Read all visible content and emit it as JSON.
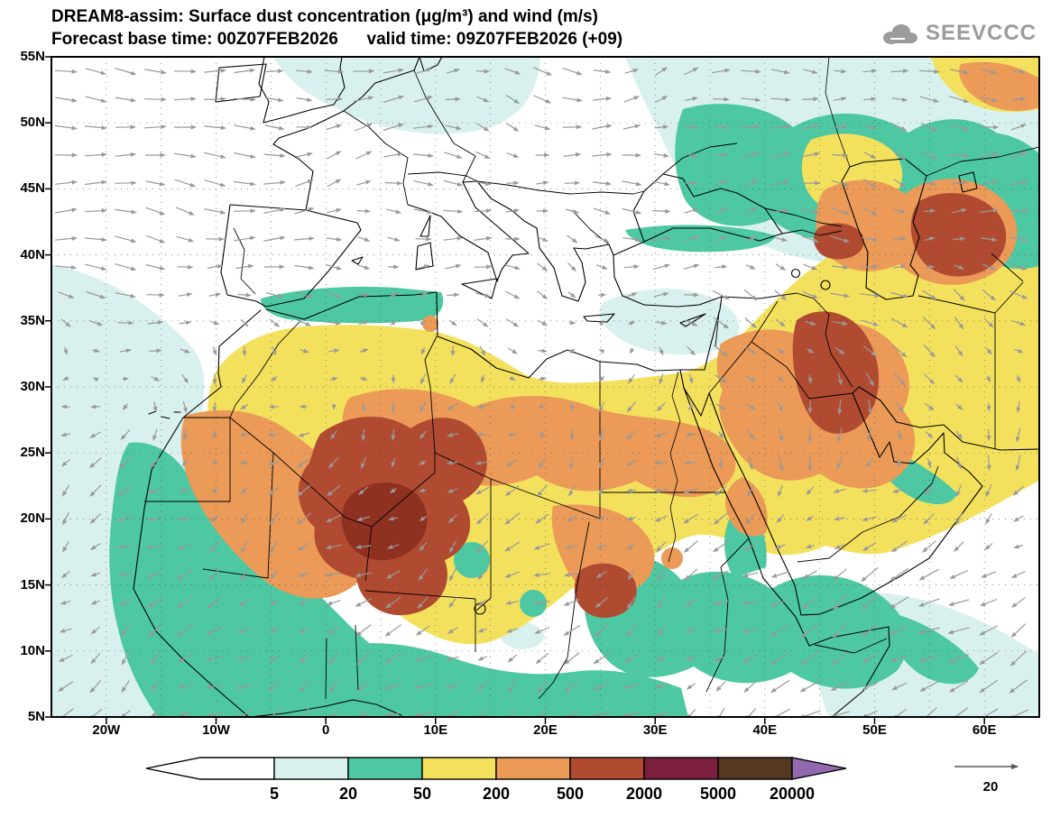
{
  "header": {
    "title_line1": "DREAM8-assim: Surface dust concentration (μg/m³) and wind (m/s)",
    "title_line2": "Forecast base time: 00Z07FEB2026      valid time: 09Z07FEB2026 (+09)",
    "logo_text": "SEEVCCC"
  },
  "axes": {
    "lat_labels": [
      "55N",
      "50N",
      "45N",
      "40N",
      "35N",
      "30N",
      "25N",
      "20N",
      "15N",
      "10N",
      "5N"
    ],
    "lon_labels": [
      "20W",
      "10W",
      "0",
      "10E",
      "20E",
      "30E",
      "40E",
      "50E",
      "60E"
    ]
  },
  "colorbar": {
    "labels": [
      "5",
      "20",
      "50",
      "200",
      "500",
      "2000",
      "5000",
      "20000"
    ],
    "segment_colors": [
      "#ffffff",
      "#d9f1ee",
      "#4dc8a2",
      "#f3e15e",
      "#eb9a57",
      "#b04b31",
      "#7c1f3e",
      "#54381f"
    ],
    "overflow_color": "#9268ae"
  },
  "wind_legend": {
    "reference_value": "20"
  },
  "chart_data": {
    "type": "heatmap",
    "title": "DREAM8-assim: Surface dust concentration (μg/m³) and wind (m/s)",
    "variable": "Surface dust concentration",
    "units": "μg/m³",
    "wind_units": "m/s",
    "forecast_base_time": "00Z07FEB2026",
    "valid_time": "09Z07FEB2026 (+09)",
    "x_axis": {
      "label": "longitude",
      "ticks": [
        "20W",
        "10W",
        "0",
        "10E",
        "20E",
        "30E",
        "40E",
        "50E",
        "60E"
      ],
      "range_deg": [
        -25,
        65
      ]
    },
    "y_axis": {
      "label": "latitude",
      "ticks": [
        "55N",
        "50N",
        "45N",
        "40N",
        "35N",
        "30N",
        "25N",
        "20N",
        "15N",
        "10N",
        "5N"
      ],
      "range_deg": [
        5,
        55
      ]
    },
    "contour_levels": [
      5,
      20,
      50,
      200,
      500,
      2000,
      5000,
      20000
    ],
    "level_colors": [
      "#ffffff",
      "#d9f1ee",
      "#4dc8a2",
      "#f3e15e",
      "#eb9a57",
      "#b04b31",
      "#7c1f3e",
      "#54381f",
      "#9268ae"
    ],
    "wind_reference_ms": 20,
    "grid_deg": 5,
    "high_dust_regions": [
      {
        "area": "central Sahara (Algeria / Mali / Mauritania)",
        "approx_level_ug_m3": "2000-5000"
      },
      {
        "area": "Chad-Sudan border",
        "approx_level_ug_m3": "2000-5000"
      },
      {
        "area": "Mesopotamia (Iraq)",
        "approx_level_ug_m3": "2000-5000"
      },
      {
        "area": "Kura valley (Caucasus)",
        "approx_level_ug_m3": "2000-5000"
      },
      {
        "area": "Turkmenistan / Karakum",
        "approx_level_ug_m3": "2000-5000"
      },
      {
        "area": "Sahara-Arabia-Middle East belt",
        "approx_level_ug_m3": "50-500"
      },
      {
        "area": "Sahel / West African coast / Horn of Africa",
        "approx_level_ug_m3": "20-50"
      }
    ]
  }
}
